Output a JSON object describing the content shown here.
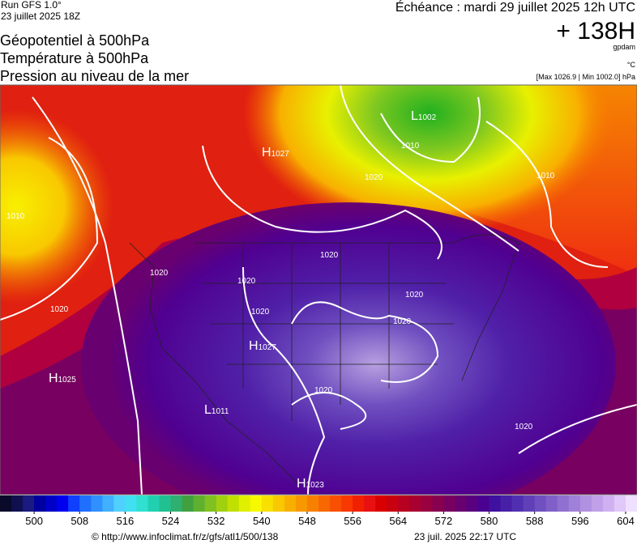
{
  "header": {
    "run": "Run GFS 1.0°",
    "run_date": "23 juillet 2025 18Z",
    "forecast": "Échéance : mardi 29 juillet 2025 12h UTC",
    "lead": "+ 138H",
    "unit_geo": "gpdam",
    "unit_temp": "°C",
    "pressure_range": "[Max 1026.9 | Min 1002.0] hPa",
    "titles": [
      "Géopotentiel à 500hPa",
      "Température à 500hPa",
      "Pression au niveau de la mer"
    ]
  },
  "map": {
    "labels": [
      {
        "letter": "H",
        "value": "1027"
      },
      {
        "letter": "L",
        "value": "1002"
      },
      {
        "letter": "H",
        "value": "1027"
      },
      {
        "letter": "H",
        "value": "1025"
      },
      {
        "letter": "L",
        "value": "1011"
      },
      {
        "letter": "H",
        "value": "1023"
      }
    ],
    "isobars": [
      "1010",
      "1010",
      "1010",
      "1020",
      "1020",
      "1020",
      "1020",
      "1020",
      "1020",
      "1020",
      "1020",
      "1020",
      "1020"
    ]
  },
  "colorbar": {
    "lim": [
      494,
      606
    ],
    "ticks": [
      500,
      508,
      516,
      524,
      532,
      540,
      548,
      556,
      564,
      572,
      580,
      588,
      596,
      604
    ],
    "colors": [
      "#0a0a2a",
      "#101050",
      "#1a1a80",
      "#0000a0",
      "#0000c8",
      "#0000f0",
      "#1040ff",
      "#2070ff",
      "#3090ff",
      "#40b0ff",
      "#50d0ff",
      "#40e0f0",
      "#30e0d0",
      "#20d0b0",
      "#20c090",
      "#30b070",
      "#40a040",
      "#60b030",
      "#80c020",
      "#a0d010",
      "#c0e000",
      "#e0f000",
      "#f8f800",
      "#f8e000",
      "#f8c800",
      "#f8b000",
      "#f89800",
      "#f88000",
      "#f86800",
      "#f85000",
      "#f83800",
      "#f02000",
      "#e81010",
      "#d80000",
      "#c80010",
      "#b80020",
      "#a80030",
      "#980040",
      "#880050",
      "#780060",
      "#680070",
      "#580080",
      "#4a0090",
      "#4010a0",
      "#4820a8",
      "#5030b0",
      "#6040b8",
      "#7050c0",
      "#8060c8",
      "#9070d0",
      "#a080d8",
      "#b090e0",
      "#c0a0e8",
      "#d0b0f0",
      "#e0c8f8",
      "#f0e0ff"
    ]
  },
  "footer": {
    "source": "© http://www.infoclimat.fr/z/gfs/atl1/500/138",
    "generated": "23 juil. 2025 22:17 UTC"
  }
}
